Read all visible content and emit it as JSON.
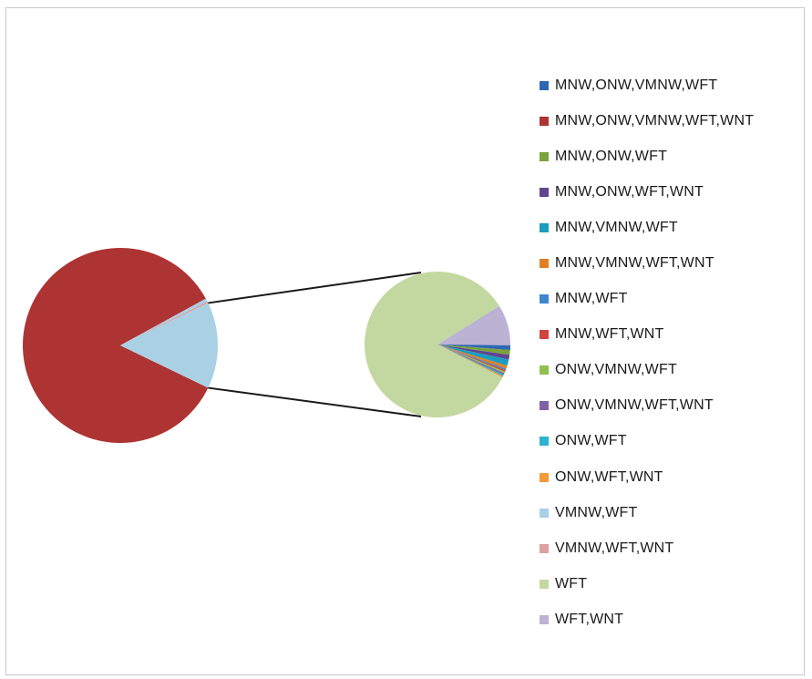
{
  "chart_data": {
    "type": "pie",
    "variant": "pie-of-pie",
    "legend_position": "right",
    "series": [
      {
        "name": "MNW,ONW,VMNW,WFT",
        "value": 0.15,
        "color": "#2e67b1",
        "plot": "secondary"
      },
      {
        "name": "MNW,ONW,VMNW,WFT,WNT",
        "value": 85.0,
        "color": "#ad3433",
        "plot": "main"
      },
      {
        "name": "MNW,ONW,WFT",
        "value": 0.15,
        "color": "#7aa33c",
        "plot": "secondary"
      },
      {
        "name": "MNW,ONW,WFT,WNT",
        "value": 0.15,
        "color": "#5e4690",
        "plot": "secondary"
      },
      {
        "name": "MNW,VMNW,WFT",
        "value": 0.2,
        "color": "#1a9dc0",
        "plot": "secondary"
      },
      {
        "name": "MNW,VMNW,WFT,WNT",
        "value": 0.1,
        "color": "#e27f24",
        "plot": "secondary"
      },
      {
        "name": "MNW,WFT",
        "value": 0.05,
        "color": "#3f86ce",
        "plot": "secondary"
      },
      {
        "name": "MNW,WFT,WNT",
        "value": 0.05,
        "color": "#d1453f",
        "plot": "secondary"
      },
      {
        "name": "ONW,VMNW,WFT",
        "value": 0.05,
        "color": "#92c04d",
        "plot": "secondary"
      },
      {
        "name": "ONW,VMNW,WFT,WNT",
        "value": 0.05,
        "color": "#7f62a6",
        "plot": "secondary"
      },
      {
        "name": "ONW,WFT",
        "value": 0.05,
        "color": "#2bb3cf",
        "plot": "secondary"
      },
      {
        "name": "ONW,WFT,WNT",
        "value": 0.05,
        "color": "#f29a3a",
        "plot": "secondary"
      },
      {
        "name": "VMNW,WFT",
        "value": 0.5,
        "color": "#a9cfe6",
        "plot": "main"
      },
      {
        "name": "VMNW,WFT,WNT",
        "value": 0.3,
        "color": "#dda0a1",
        "plot": "main"
      },
      {
        "name": "WFT",
        "value": 12.0,
        "color": "#c3d8a0",
        "plot": "secondary"
      },
      {
        "name": "WFT,WNT",
        "value": 1.3,
        "color": "#bbb2d4",
        "plot": "secondary"
      }
    ],
    "other_slice_color": "#a9d1e3"
  }
}
